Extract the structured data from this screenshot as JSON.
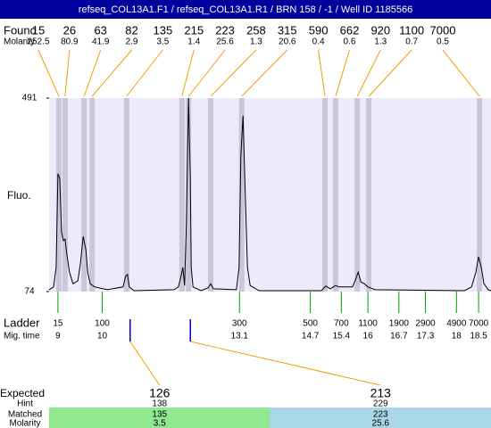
{
  "chart_data": {
    "type": "line",
    "title": "refseq_COL13A1.F1 / refseq_COL13A1.R1 / BRN 158 / -1 / Well ID 1185566",
    "ylabel": "Fluo.",
    "ylim": [
      74,
      491
    ],
    "yticks": [
      74,
      491
    ],
    "xlim": [
      8.8,
      18.78
    ],
    "found": {
      "label": "Found",
      "molarity_label": "Molarity",
      "sizes": [
        15,
        26,
        63,
        82,
        135,
        215,
        223,
        258,
        315,
        590,
        662,
        920,
        1100,
        7000
      ],
      "molarity": [
        252.5,
        80.9,
        41.9,
        2.9,
        3.5,
        1.4,
        25.6,
        1.3,
        20.6,
        0.4,
        0.6,
        1.3,
        0.7,
        0.5
      ],
      "x": [
        9.02,
        9.16,
        9.59,
        9.77,
        10.55,
        11.8,
        11.95,
        12.45,
        13.15,
        15.03,
        15.27,
        15.76,
        16.02,
        18.52
      ]
    },
    "trace": {
      "x": [
        8.8,
        8.9,
        8.96,
        9.0,
        9.04,
        9.08,
        9.12,
        9.16,
        9.2,
        9.26,
        9.34,
        9.45,
        9.51,
        9.57,
        9.63,
        9.67,
        9.73,
        9.83,
        10.11,
        10.47,
        10.53,
        10.57,
        10.61,
        10.72,
        11.62,
        11.72,
        11.78,
        11.82,
        11.86,
        11.9,
        11.95,
        11.99,
        12.01,
        12.05,
        12.23,
        12.39,
        12.45,
        12.51,
        13.03,
        13.09,
        13.13,
        13.18,
        13.22,
        13.28,
        13.34,
        13.54,
        14.95,
        15.05,
        15.15,
        15.27,
        15.35,
        15.65,
        15.72,
        15.78,
        15.84,
        15.92,
        16.0,
        16.16,
        18.18,
        18.34,
        18.44,
        18.5,
        18.56,
        18.62,
        18.72,
        18.78
      ],
      "y": [
        78,
        84,
        126,
        328,
        318,
        203,
        184,
        187,
        155,
        116,
        91,
        97,
        136,
        193,
        164,
        116,
        91,
        84,
        78,
        84,
        107,
        111,
        84,
        76,
        78,
        84,
        107,
        126,
        87,
        222,
        491,
        318,
        126,
        84,
        76,
        82,
        91,
        80,
        78,
        126,
        366,
        453,
        318,
        126,
        87,
        76,
        76,
        86,
        80,
        87,
        84,
        84,
        99,
        116,
        95,
        91,
        84,
        78,
        76,
        84,
        116,
        149,
        126,
        91,
        78,
        76
      ]
    },
    "ladder": {
      "label": "Ladder",
      "time_label": "Mig. time",
      "sizes": [
        15,
        100,
        300,
        500,
        700,
        1100,
        1900,
        2900,
        4900,
        7000
      ],
      "times": [
        9,
        10,
        13.1,
        14.7,
        15.4,
        16,
        16.7,
        17.3,
        18,
        18.5
      ]
    },
    "expected": {
      "label": "Expected",
      "hint_label": "Hint",
      "matched_label": "Matched",
      "molarity_label": "Molarity",
      "sizes": [
        126,
        213
      ],
      "hint": [
        138,
        229
      ],
      "matched": [
        135,
        223
      ],
      "molarity": [
        3.5,
        25.6
      ],
      "x": [
        10.63,
        11.99
      ]
    }
  }
}
